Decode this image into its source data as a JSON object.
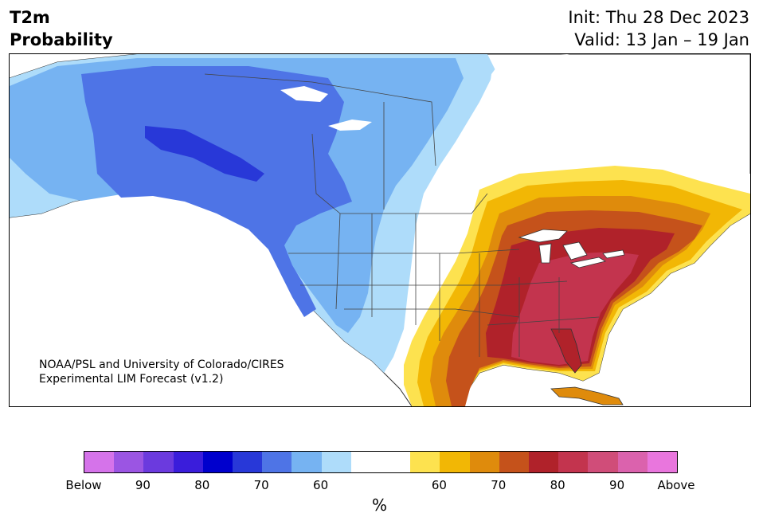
{
  "header": {
    "title_line1": "T2m",
    "title_line2": "Probability",
    "init": "Init: Thu 28 Dec 2023",
    "valid": "Valid: 13 Jan – 19 Jan"
  },
  "credit": {
    "line1": "NOAA/PSL and University of Colorado/CIRES",
    "line2": "Experimental LIM Forecast (v1.2)"
  },
  "map": {
    "below_colors": {
      "b50": "#aedcfa",
      "b60": "#76b3f2",
      "b65": "#4e74e6",
      "b70": "#2838d8"
    },
    "above_colors": {
      "a50": "#fde24f",
      "a60": "#f2b705",
      "a65": "#df8b0c",
      "a70": "#c5521b",
      "a75": "#b0222a",
      "a80": "#c3344e"
    },
    "ocean_color": "#ffffff"
  },
  "colorbar": {
    "colors": [
      "#d573ea",
      "#9b55e3",
      "#6b3ade",
      "#3a1ddb",
      "#0000cd",
      "#2838d8",
      "#4e74e6",
      "#76b3f2",
      "#aedcfa",
      "#ffffff",
      "#ffffff",
      "#fde24f",
      "#f2b705",
      "#df8b0c",
      "#c5521b",
      "#b0222a",
      "#c3344e",
      "#d04d79",
      "#db62ad",
      "#e976dd"
    ],
    "ticks": [
      "Below",
      "90",
      "80",
      "70",
      "60",
      "60",
      "70",
      "80",
      "90",
      "Above"
    ],
    "unit": "%"
  }
}
